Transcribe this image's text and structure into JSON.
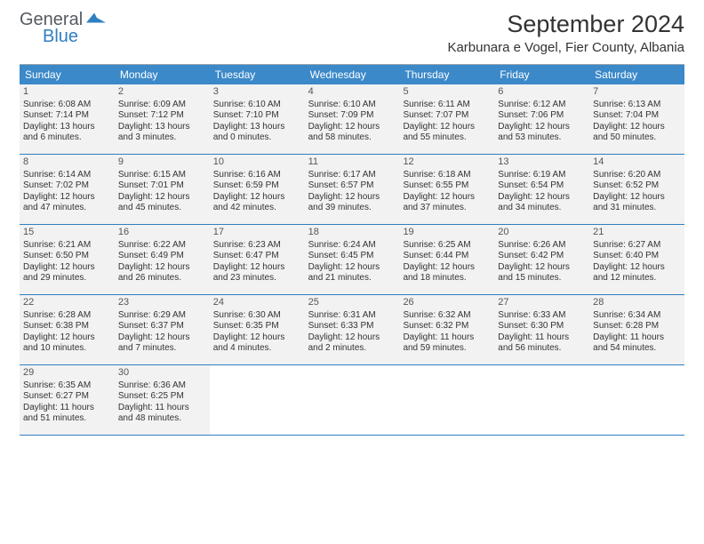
{
  "logo": {
    "text_top": "General",
    "text_bottom": "Blue"
  },
  "header": {
    "month_title": "September 2024",
    "location": "Karbunara e Vogel, Fier County, Albania"
  },
  "colors": {
    "header_bg": "#3b89c9",
    "week_border": "#2f7fc2",
    "day_bg": "#f2f2f2",
    "text": "#333333"
  },
  "weekdays": [
    "Sunday",
    "Monday",
    "Tuesday",
    "Wednesday",
    "Thursday",
    "Friday",
    "Saturday"
  ],
  "days": [
    {
      "n": 1,
      "sunrise": "6:08 AM",
      "sunset": "7:14 PM",
      "daylight": "13 hours and 6 minutes."
    },
    {
      "n": 2,
      "sunrise": "6:09 AM",
      "sunset": "7:12 PM",
      "daylight": "13 hours and 3 minutes."
    },
    {
      "n": 3,
      "sunrise": "6:10 AM",
      "sunset": "7:10 PM",
      "daylight": "13 hours and 0 minutes."
    },
    {
      "n": 4,
      "sunrise": "6:10 AM",
      "sunset": "7:09 PM",
      "daylight": "12 hours and 58 minutes."
    },
    {
      "n": 5,
      "sunrise": "6:11 AM",
      "sunset": "7:07 PM",
      "daylight": "12 hours and 55 minutes."
    },
    {
      "n": 6,
      "sunrise": "6:12 AM",
      "sunset": "7:06 PM",
      "daylight": "12 hours and 53 minutes."
    },
    {
      "n": 7,
      "sunrise": "6:13 AM",
      "sunset": "7:04 PM",
      "daylight": "12 hours and 50 minutes."
    },
    {
      "n": 8,
      "sunrise": "6:14 AM",
      "sunset": "7:02 PM",
      "daylight": "12 hours and 47 minutes."
    },
    {
      "n": 9,
      "sunrise": "6:15 AM",
      "sunset": "7:01 PM",
      "daylight": "12 hours and 45 minutes."
    },
    {
      "n": 10,
      "sunrise": "6:16 AM",
      "sunset": "6:59 PM",
      "daylight": "12 hours and 42 minutes."
    },
    {
      "n": 11,
      "sunrise": "6:17 AM",
      "sunset": "6:57 PM",
      "daylight": "12 hours and 39 minutes."
    },
    {
      "n": 12,
      "sunrise": "6:18 AM",
      "sunset": "6:55 PM",
      "daylight": "12 hours and 37 minutes."
    },
    {
      "n": 13,
      "sunrise": "6:19 AM",
      "sunset": "6:54 PM",
      "daylight": "12 hours and 34 minutes."
    },
    {
      "n": 14,
      "sunrise": "6:20 AM",
      "sunset": "6:52 PM",
      "daylight": "12 hours and 31 minutes."
    },
    {
      "n": 15,
      "sunrise": "6:21 AM",
      "sunset": "6:50 PM",
      "daylight": "12 hours and 29 minutes."
    },
    {
      "n": 16,
      "sunrise": "6:22 AM",
      "sunset": "6:49 PM",
      "daylight": "12 hours and 26 minutes."
    },
    {
      "n": 17,
      "sunrise": "6:23 AM",
      "sunset": "6:47 PM",
      "daylight": "12 hours and 23 minutes."
    },
    {
      "n": 18,
      "sunrise": "6:24 AM",
      "sunset": "6:45 PM",
      "daylight": "12 hours and 21 minutes."
    },
    {
      "n": 19,
      "sunrise": "6:25 AM",
      "sunset": "6:44 PM",
      "daylight": "12 hours and 18 minutes."
    },
    {
      "n": 20,
      "sunrise": "6:26 AM",
      "sunset": "6:42 PM",
      "daylight": "12 hours and 15 minutes."
    },
    {
      "n": 21,
      "sunrise": "6:27 AM",
      "sunset": "6:40 PM",
      "daylight": "12 hours and 12 minutes."
    },
    {
      "n": 22,
      "sunrise": "6:28 AM",
      "sunset": "6:38 PM",
      "daylight": "12 hours and 10 minutes."
    },
    {
      "n": 23,
      "sunrise": "6:29 AM",
      "sunset": "6:37 PM",
      "daylight": "12 hours and 7 minutes."
    },
    {
      "n": 24,
      "sunrise": "6:30 AM",
      "sunset": "6:35 PM",
      "daylight": "12 hours and 4 minutes."
    },
    {
      "n": 25,
      "sunrise": "6:31 AM",
      "sunset": "6:33 PM",
      "daylight": "12 hours and 2 minutes."
    },
    {
      "n": 26,
      "sunrise": "6:32 AM",
      "sunset": "6:32 PM",
      "daylight": "11 hours and 59 minutes."
    },
    {
      "n": 27,
      "sunrise": "6:33 AM",
      "sunset": "6:30 PM",
      "daylight": "11 hours and 56 minutes."
    },
    {
      "n": 28,
      "sunrise": "6:34 AM",
      "sunset": "6:28 PM",
      "daylight": "11 hours and 54 minutes."
    },
    {
      "n": 29,
      "sunrise": "6:35 AM",
      "sunset": "6:27 PM",
      "daylight": "11 hours and 51 minutes."
    },
    {
      "n": 30,
      "sunrise": "6:36 AM",
      "sunset": "6:25 PM",
      "daylight": "11 hours and 48 minutes."
    }
  ],
  "labels": {
    "sunrise": "Sunrise:",
    "sunset": "Sunset:",
    "daylight": "Daylight:"
  },
  "layout": {
    "first_weekday_index": 0,
    "weeks": 5,
    "days_in_month": 30
  }
}
